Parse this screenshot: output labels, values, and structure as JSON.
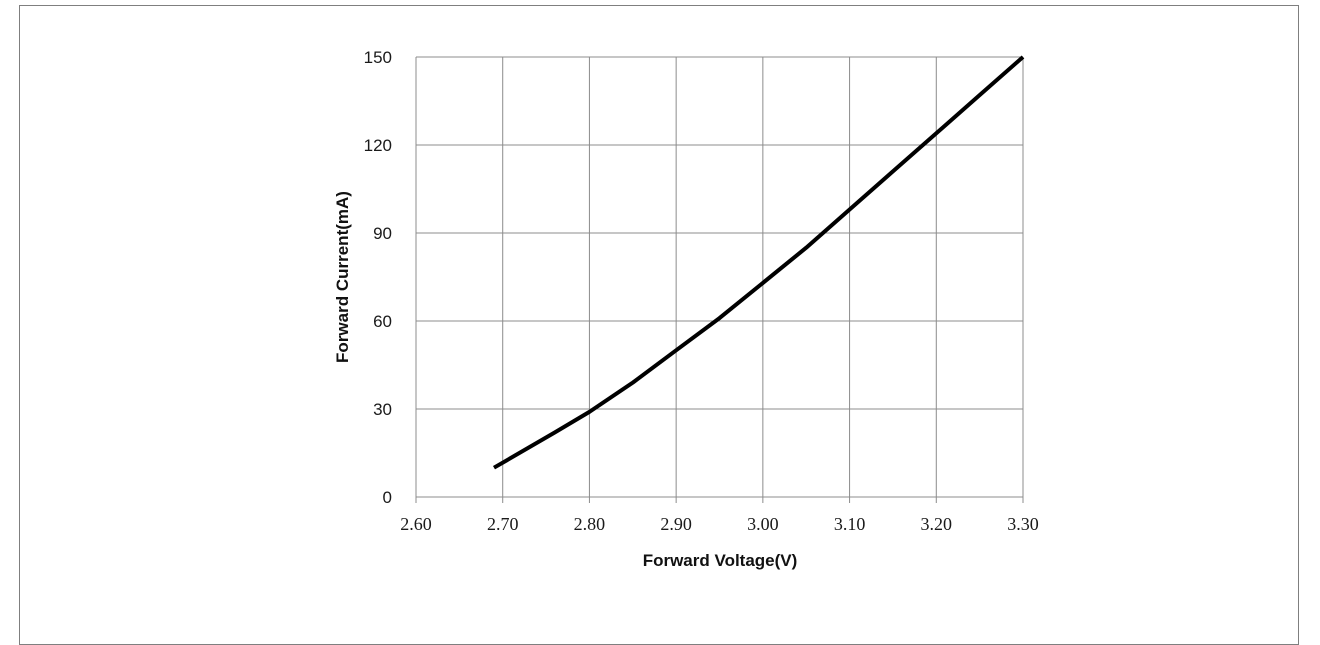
{
  "chart_data": {
    "type": "line",
    "title": "",
    "xlabel": "Forward Voltage(V)",
    "ylabel": "Forward Current(mA)",
    "xlim": [
      2.6,
      3.3
    ],
    "ylim": [
      0,
      150
    ],
    "x_ticks": [
      "2.60",
      "2.70",
      "2.80",
      "2.90",
      "3.00",
      "3.10",
      "3.20",
      "3.30"
    ],
    "y_ticks": [
      "0",
      "30",
      "60",
      "90",
      "120",
      "150"
    ],
    "grid": true,
    "legend": "none",
    "line_color": "#000000",
    "series": [
      {
        "x": [
          2.69,
          2.76,
          2.8,
          2.85,
          2.9,
          2.95,
          3.0,
          3.05,
          3.1,
          3.15,
          3.2,
          3.25,
          3.3
        ],
        "values": [
          10,
          22,
          29,
          39,
          50,
          61,
          73,
          85,
          98,
          111,
          124,
          137,
          150
        ]
      }
    ]
  }
}
